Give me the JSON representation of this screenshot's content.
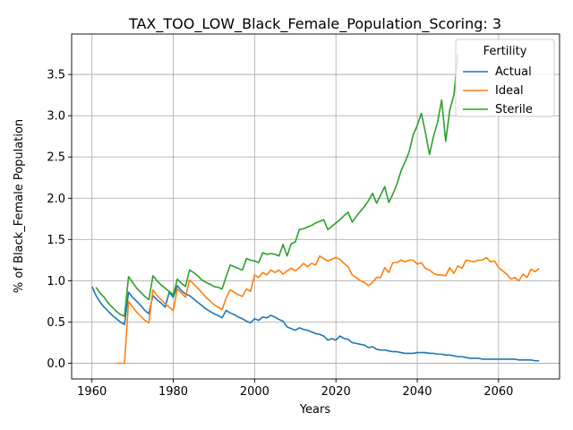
{
  "chart_data": {
    "type": "line",
    "title": "TAX_TOO_LOW_Black_Female_Population_Scoring: 3",
    "xlabel": "Years",
    "ylabel": "% of Black_Female Population",
    "xlim": [
      1955,
      2075
    ],
    "ylim": [
      -0.19,
      3.99
    ],
    "xticks": [
      1960,
      1980,
      2000,
      2020,
      2040,
      2060
    ],
    "yticks": [
      0.0,
      0.5,
      1.0,
      1.5,
      2.0,
      2.5,
      3.0,
      3.5
    ],
    "grid": true,
    "legend": {
      "title": "Fertility",
      "placement": "top-right"
    },
    "series": [
      {
        "name": "Actual",
        "color": "#1f77b4",
        "points": [
          [
            1960,
            0.93
          ],
          [
            1961,
            0.82
          ],
          [
            1962,
            0.74
          ],
          [
            1963,
            0.68
          ],
          [
            1964,
            0.63
          ],
          [
            1965,
            0.58
          ],
          [
            1966,
            0.54
          ],
          [
            1967,
            0.5
          ],
          [
            1968,
            0.47
          ],
          [
            1969,
            0.86
          ],
          [
            1970,
            0.8
          ],
          [
            1971,
            0.75
          ],
          [
            1972,
            0.7
          ],
          [
            1973,
            0.64
          ],
          [
            1974,
            0.6
          ],
          [
            1975,
            0.82
          ],
          [
            1976,
            0.77
          ],
          [
            1977,
            0.73
          ],
          [
            1978,
            0.68
          ],
          [
            1979,
            0.86
          ],
          [
            1980,
            0.8
          ],
          [
            1981,
            0.94
          ],
          [
            1982,
            0.88
          ],
          [
            1983,
            0.84
          ],
          [
            1984,
            0.82
          ],
          [
            1985,
            0.78
          ],
          [
            1986,
            0.74
          ],
          [
            1987,
            0.7
          ],
          [
            1988,
            0.66
          ],
          [
            1989,
            0.63
          ],
          [
            1990,
            0.6
          ],
          [
            1991,
            0.58
          ],
          [
            1992,
            0.55
          ],
          [
            1993,
            0.64
          ],
          [
            1994,
            0.61
          ],
          [
            1995,
            0.59
          ],
          [
            1996,
            0.56
          ],
          [
            1997,
            0.54
          ],
          [
            1998,
            0.51
          ],
          [
            1999,
            0.49
          ],
          [
            2000,
            0.54
          ],
          [
            2001,
            0.52
          ],
          [
            2002,
            0.56
          ],
          [
            2003,
            0.55
          ],
          [
            2004,
            0.58
          ],
          [
            2005,
            0.56
          ],
          [
            2006,
            0.53
          ],
          [
            2007,
            0.51
          ],
          [
            2008,
            0.44
          ],
          [
            2009,
            0.42
          ],
          [
            2010,
            0.4
          ],
          [
            2011,
            0.43
          ],
          [
            2012,
            0.41
          ],
          [
            2013,
            0.4
          ],
          [
            2014,
            0.38
          ],
          [
            2015,
            0.36
          ],
          [
            2016,
            0.35
          ],
          [
            2017,
            0.33
          ],
          [
            2018,
            0.28
          ],
          [
            2019,
            0.3
          ],
          [
            2020,
            0.28
          ],
          [
            2021,
            0.33
          ],
          [
            2022,
            0.3
          ],
          [
            2023,
            0.29
          ],
          [
            2024,
            0.25
          ],
          [
            2025,
            0.24
          ],
          [
            2026,
            0.23
          ],
          [
            2027,
            0.22
          ],
          [
            2028,
            0.19
          ],
          [
            2029,
            0.2
          ],
          [
            2030,
            0.17
          ],
          [
            2031,
            0.16
          ],
          [
            2032,
            0.16
          ],
          [
            2033,
            0.15
          ],
          [
            2034,
            0.14
          ],
          [
            2035,
            0.14
          ],
          [
            2036,
            0.13
          ],
          [
            2037,
            0.12
          ],
          [
            2038,
            0.12
          ],
          [
            2039,
            0.12
          ],
          [
            2040,
            0.13
          ],
          [
            2041,
            0.13
          ],
          [
            2042,
            0.13
          ],
          [
            2043,
            0.12
          ],
          [
            2044,
            0.12
          ],
          [
            2045,
            0.11
          ],
          [
            2046,
            0.11
          ],
          [
            2047,
            0.1
          ],
          [
            2048,
            0.1
          ],
          [
            2049,
            0.09
          ],
          [
            2050,
            0.08
          ],
          [
            2051,
            0.08
          ],
          [
            2052,
            0.07
          ],
          [
            2053,
            0.06
          ],
          [
            2054,
            0.06
          ],
          [
            2055,
            0.06
          ],
          [
            2056,
            0.05
          ],
          [
            2057,
            0.05
          ],
          [
            2058,
            0.05
          ],
          [
            2059,
            0.05
          ],
          [
            2060,
            0.05
          ],
          [
            2061,
            0.05
          ],
          [
            2062,
            0.05
          ],
          [
            2063,
            0.05
          ],
          [
            2064,
            0.05
          ],
          [
            2065,
            0.04
          ],
          [
            2066,
            0.04
          ],
          [
            2067,
            0.04
          ],
          [
            2068,
            0.04
          ],
          [
            2069,
            0.03
          ],
          [
            2070,
            0.03
          ]
        ]
      },
      {
        "name": "Ideal",
        "color": "#ff7f0e",
        "points": [
          [
            1966,
            0.0
          ],
          [
            1967,
            0.0
          ],
          [
            1968,
            0.0
          ],
          [
            1969,
            0.75
          ],
          [
            1970,
            0.68
          ],
          [
            1971,
            0.62
          ],
          [
            1972,
            0.57
          ],
          [
            1973,
            0.52
          ],
          [
            1974,
            0.49
          ],
          [
            1975,
            0.89
          ],
          [
            1976,
            0.82
          ],
          [
            1977,
            0.77
          ],
          [
            1978,
            0.72
          ],
          [
            1979,
            0.68
          ],
          [
            1980,
            0.64
          ],
          [
            1981,
            0.9
          ],
          [
            1982,
            0.85
          ],
          [
            1983,
            0.8
          ],
          [
            1984,
            1.01
          ],
          [
            1985,
            0.96
          ],
          [
            1986,
            0.91
          ],
          [
            1987,
            0.86
          ],
          [
            1988,
            0.8
          ],
          [
            1989,
            0.76
          ],
          [
            1990,
            0.71
          ],
          [
            1991,
            0.68
          ],
          [
            1992,
            0.65
          ],
          [
            1993,
            0.79
          ],
          [
            1994,
            0.89
          ],
          [
            1995,
            0.86
          ],
          [
            1996,
            0.83
          ],
          [
            1997,
            0.81
          ],
          [
            1998,
            0.9
          ],
          [
            1999,
            0.87
          ],
          [
            2000,
            1.07
          ],
          [
            2001,
            1.04
          ],
          [
            2002,
            1.1
          ],
          [
            2003,
            1.07
          ],
          [
            2004,
            1.13
          ],
          [
            2005,
            1.1
          ],
          [
            2006,
            1.13
          ],
          [
            2007,
            1.08
          ],
          [
            2008,
            1.12
          ],
          [
            2009,
            1.15
          ],
          [
            2010,
            1.12
          ],
          [
            2011,
            1.16
          ],
          [
            2012,
            1.21
          ],
          [
            2013,
            1.17
          ],
          [
            2014,
            1.21
          ],
          [
            2015,
            1.19
          ],
          [
            2016,
            1.3
          ],
          [
            2017,
            1.27
          ],
          [
            2018,
            1.24
          ],
          [
            2019,
            1.26
          ],
          [
            2020,
            1.28
          ],
          [
            2021,
            1.26
          ],
          [
            2022,
            1.21
          ],
          [
            2023,
            1.17
          ],
          [
            2024,
            1.07
          ],
          [
            2025,
            1.04
          ],
          [
            2026,
            1.0
          ],
          [
            2027,
            0.98
          ],
          [
            2028,
            0.94
          ],
          [
            2029,
            0.98
          ],
          [
            2030,
            1.04
          ],
          [
            2031,
            1.04
          ],
          [
            2032,
            1.16
          ],
          [
            2033,
            1.1
          ],
          [
            2034,
            1.22
          ],
          [
            2035,
            1.22
          ],
          [
            2036,
            1.25
          ],
          [
            2037,
            1.23
          ],
          [
            2038,
            1.25
          ],
          [
            2039,
            1.25
          ],
          [
            2040,
            1.2
          ],
          [
            2041,
            1.22
          ],
          [
            2042,
            1.15
          ],
          [
            2043,
            1.13
          ],
          [
            2044,
            1.09
          ],
          [
            2045,
            1.07
          ],
          [
            2046,
            1.07
          ],
          [
            2047,
            1.06
          ],
          [
            2048,
            1.16
          ],
          [
            2049,
            1.09
          ],
          [
            2050,
            1.18
          ],
          [
            2051,
            1.15
          ],
          [
            2052,
            1.25
          ],
          [
            2053,
            1.24
          ],
          [
            2054,
            1.23
          ],
          [
            2055,
            1.25
          ],
          [
            2056,
            1.25
          ],
          [
            2057,
            1.28
          ],
          [
            2058,
            1.23
          ],
          [
            2059,
            1.24
          ],
          [
            2060,
            1.16
          ],
          [
            2061,
            1.12
          ],
          [
            2062,
            1.08
          ],
          [
            2063,
            1.02
          ],
          [
            2064,
            1.04
          ],
          [
            2065,
            1.0
          ],
          [
            2066,
            1.08
          ],
          [
            2067,
            1.04
          ],
          [
            2068,
            1.14
          ],
          [
            2069,
            1.11
          ],
          [
            2070,
            1.15
          ]
        ]
      },
      {
        "name": "Sterile",
        "color": "#2ca02c",
        "points": [
          [
            1961,
            0.92
          ],
          [
            1962,
            0.85
          ],
          [
            1963,
            0.8
          ],
          [
            1964,
            0.73
          ],
          [
            1965,
            0.68
          ],
          [
            1966,
            0.63
          ],
          [
            1967,
            0.59
          ],
          [
            1968,
            0.57
          ],
          [
            1969,
            1.05
          ],
          [
            1970,
            0.98
          ],
          [
            1971,
            0.91
          ],
          [
            1972,
            0.86
          ],
          [
            1973,
            0.81
          ],
          [
            1974,
            0.77
          ],
          [
            1975,
            1.06
          ],
          [
            1976,
            1.0
          ],
          [
            1977,
            0.95
          ],
          [
            1978,
            0.91
          ],
          [
            1979,
            0.87
          ],
          [
            1980,
            0.83
          ],
          [
            1981,
            1.02
          ],
          [
            1982,
            0.97
          ],
          [
            1983,
            0.93
          ],
          [
            1984,
            1.13
          ],
          [
            1985,
            1.1
          ],
          [
            1986,
            1.06
          ],
          [
            1987,
            1.01
          ],
          [
            1988,
            0.98
          ],
          [
            1989,
            0.96
          ],
          [
            1990,
            0.93
          ],
          [
            1991,
            0.92
          ],
          [
            1992,
            0.9
          ],
          [
            1993,
            1.05
          ],
          [
            1994,
            1.19
          ],
          [
            1995,
            1.17
          ],
          [
            1996,
            1.15
          ],
          [
            1997,
            1.13
          ],
          [
            1998,
            1.27
          ],
          [
            1999,
            1.25
          ],
          [
            2000,
            1.24
          ],
          [
            2001,
            1.22
          ],
          [
            2002,
            1.34
          ],
          [
            2003,
            1.32
          ],
          [
            2004,
            1.33
          ],
          [
            2005,
            1.32
          ],
          [
            2006,
            1.3
          ],
          [
            2007,
            1.44
          ],
          [
            2008,
            1.3
          ],
          [
            2009,
            1.45
          ],
          [
            2010,
            1.47
          ],
          [
            2011,
            1.62
          ],
          [
            2012,
            1.63
          ],
          [
            2013,
            1.65
          ],
          [
            2014,
            1.67
          ],
          [
            2015,
            1.7
          ],
          [
            2016,
            1.72
          ],
          [
            2017,
            1.74
          ],
          [
            2018,
            1.62
          ],
          [
            2019,
            1.66
          ],
          [
            2020,
            1.7
          ],
          [
            2021,
            1.74
          ],
          [
            2022,
            1.79
          ],
          [
            2023,
            1.83
          ],
          [
            2024,
            1.71
          ],
          [
            2025,
            1.78
          ],
          [
            2026,
            1.84
          ],
          [
            2027,
            1.9
          ],
          [
            2028,
            1.97
          ],
          [
            2029,
            2.06
          ],
          [
            2030,
            1.94
          ],
          [
            2031,
            2.04
          ],
          [
            2032,
            2.14
          ],
          [
            2033,
            1.95
          ],
          [
            2034,
            2.05
          ],
          [
            2035,
            2.17
          ],
          [
            2036,
            2.33
          ],
          [
            2037,
            2.44
          ],
          [
            2038,
            2.56
          ],
          [
            2039,
            2.77
          ],
          [
            2040,
            2.88
          ],
          [
            2041,
            3.03
          ],
          [
            2042,
            2.8
          ],
          [
            2043,
            2.53
          ],
          [
            2044,
            2.75
          ],
          [
            2045,
            2.92
          ],
          [
            2046,
            3.19
          ],
          [
            2047,
            2.69
          ],
          [
            2048,
            3.07
          ],
          [
            2049,
            3.25
          ],
          [
            2050,
            3.75
          ]
        ]
      }
    ]
  }
}
